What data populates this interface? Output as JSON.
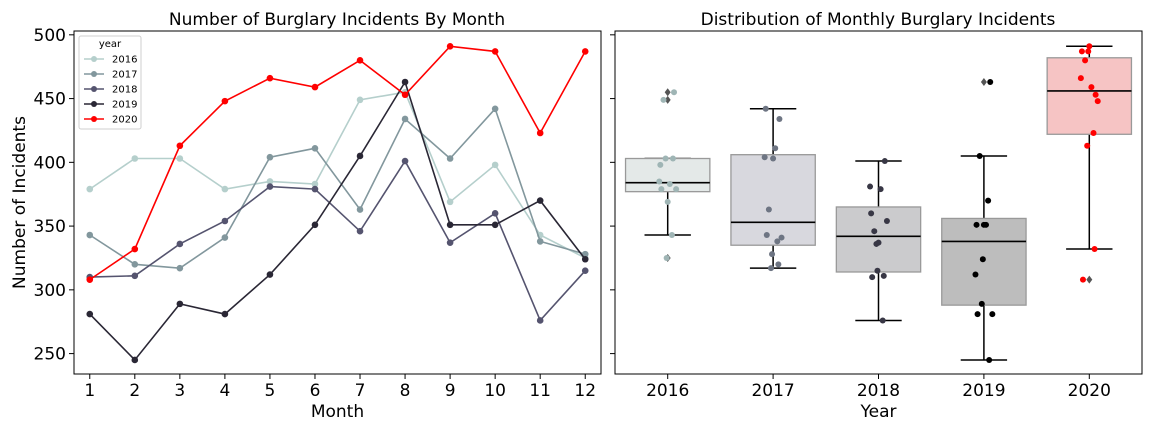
{
  "chart_data": [
    {
      "type": "line",
      "title": "Number of Burglary Incidents By Month",
      "xlabel": "Month",
      "ylabel": "Number of Incidents",
      "x": [
        1,
        2,
        3,
        4,
        5,
        6,
        7,
        8,
        9,
        10,
        11,
        12
      ],
      "xlim": [
        0.65,
        12.35
      ],
      "ylim": [
        234,
        503
      ],
      "yticks": [
        250,
        300,
        350,
        400,
        450,
        500
      ],
      "legend": {
        "title": "year",
        "placement": "upper-left"
      },
      "series": [
        {
          "name": "2016",
          "color": "#b5cfcc",
          "values": [
            379,
            403,
            403,
            379,
            385,
            383,
            449,
            455,
            369,
            398,
            343,
            325
          ]
        },
        {
          "name": "2017",
          "color": "#82979d",
          "values": [
            343,
            320,
            317,
            341,
            404,
            411,
            363,
            434,
            403,
            442,
            338,
            328
          ]
        },
        {
          "name": "2018",
          "color": "#55546f",
          "values": [
            310,
            311,
            336,
            354,
            381,
            379,
            346,
            401,
            337,
            360,
            276,
            315
          ]
        },
        {
          "name": "2019",
          "color": "#2a2735",
          "values": [
            281,
            245,
            289,
            281,
            312,
            351,
            405,
            463,
            351,
            351,
            370,
            324
          ]
        },
        {
          "name": "2020",
          "color": "#ff0000",
          "values": [
            308,
            332,
            413,
            448,
            466,
            459,
            480,
            453,
            491,
            487,
            423,
            487
          ]
        }
      ]
    },
    {
      "type": "box",
      "title": "Distribution of Monthly Burglary Incidents",
      "xlabel": "Year",
      "ylabel": "",
      "categories": [
        "2016",
        "2017",
        "2018",
        "2019",
        "2020"
      ],
      "ylim": [
        234,
        503
      ],
      "shares_y_with": "left-chart",
      "boxes": [
        {
          "year": "2016",
          "q1": 377,
          "median": 384,
          "q3": 403,
          "whisker_low": 343,
          "whisker_high": 403,
          "outliers": [
            325,
            449,
            455
          ],
          "box_color": "#e4e9e8",
          "point_color": "#9fb5b5"
        },
        {
          "year": "2017",
          "q1": 335,
          "median": 353,
          "q3": 406,
          "whisker_low": 317,
          "whisker_high": 442,
          "outliers": [],
          "box_color": "#d8d8de",
          "point_color": "#6e7583"
        },
        {
          "year": "2018",
          "q1": 314,
          "median": 342,
          "q3": 365,
          "whisker_low": 276,
          "whisker_high": 401,
          "outliers": [],
          "box_color": "#cbcbcd",
          "point_color": "#383745"
        },
        {
          "year": "2019",
          "q1": 288,
          "median": 338,
          "q3": 356,
          "whisker_low": 245,
          "whisker_high": 405,
          "outliers": [
            463
          ],
          "box_color": "#bdbdbd",
          "point_color": "#000000"
        },
        {
          "year": "2020",
          "q1": 422,
          "median": 456,
          "q3": 482,
          "whisker_low": 332,
          "whisker_high": 491,
          "outliers": [
            308
          ],
          "box_color": "#f6c4c4",
          "point_color": "#ff0000"
        }
      ]
    }
  ]
}
